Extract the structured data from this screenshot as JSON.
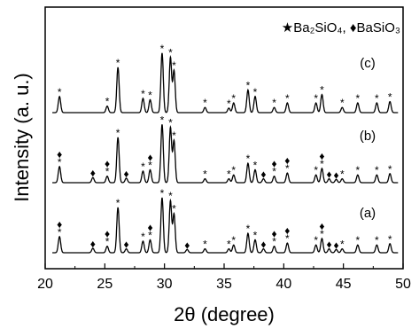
{
  "chart_data": {
    "type": "line",
    "xlabel": "2θ (degree)",
    "ylabel": "Intensity (a. u.)",
    "xlim": [
      20,
      50
    ],
    "xticks": [
      20,
      25,
      30,
      35,
      40,
      45,
      50
    ],
    "legend": {
      "placement": "top-right",
      "entries": [
        {
          "marker": "★",
          "label": "Ba₂SiO₄,"
        },
        {
          "marker": "♦",
          "label": "BaSiO₃"
        }
      ]
    },
    "series": [
      {
        "name": "(c)",
        "peaks": [
          {
            "x": 21.2,
            "h": 0.25
          },
          {
            "x": 25.2,
            "h": 0.1
          },
          {
            "x": 26.1,
            "h": 0.7
          },
          {
            "x": 28.2,
            "h": 0.22
          },
          {
            "x": 28.8,
            "h": 0.2
          },
          {
            "x": 29.8,
            "h": 0.92
          },
          {
            "x": 30.5,
            "h": 0.85
          },
          {
            "x": 30.8,
            "h": 0.65
          },
          {
            "x": 33.4,
            "h": 0.08
          },
          {
            "x": 35.4,
            "h": 0.07
          },
          {
            "x": 35.8,
            "h": 0.15
          },
          {
            "x": 37.0,
            "h": 0.35
          },
          {
            "x": 37.6,
            "h": 0.25
          },
          {
            "x": 39.2,
            "h": 0.08
          },
          {
            "x": 40.3,
            "h": 0.15
          },
          {
            "x": 42.7,
            "h": 0.15
          },
          {
            "x": 43.2,
            "h": 0.28
          },
          {
            "x": 44.9,
            "h": 0.08
          },
          {
            "x": 46.2,
            "h": 0.15
          },
          {
            "x": 47.8,
            "h": 0.15
          },
          {
            "x": 48.9,
            "h": 0.17
          }
        ],
        "markers": [
          {
            "x": 21.2,
            "type": "star"
          },
          {
            "x": 25.2,
            "type": "star"
          },
          {
            "x": 26.1,
            "type": "star"
          },
          {
            "x": 28.2,
            "type": "star"
          },
          {
            "x": 28.8,
            "type": "star"
          },
          {
            "x": 29.8,
            "type": "star"
          },
          {
            "x": 30.5,
            "type": "star"
          },
          {
            "x": 30.8,
            "type": "star"
          },
          {
            "x": 33.4,
            "type": "star"
          },
          {
            "x": 35.4,
            "type": "star"
          },
          {
            "x": 35.8,
            "type": "star"
          },
          {
            "x": 37.0,
            "type": "star"
          },
          {
            "x": 37.6,
            "type": "star"
          },
          {
            "x": 39.2,
            "type": "star"
          },
          {
            "x": 40.3,
            "type": "star"
          },
          {
            "x": 42.7,
            "type": "star"
          },
          {
            "x": 43.2,
            "type": "star"
          },
          {
            "x": 44.9,
            "type": "star"
          },
          {
            "x": 46.2,
            "type": "star"
          },
          {
            "x": 47.8,
            "type": "star"
          },
          {
            "x": 48.9,
            "type": "star"
          }
        ]
      },
      {
        "name": "(b)",
        "peaks": [
          {
            "x": 21.2,
            "h": 0.25
          },
          {
            "x": 24.0,
            "h": 0.08
          },
          {
            "x": 25.2,
            "h": 0.1
          },
          {
            "x": 26.1,
            "h": 0.7
          },
          {
            "x": 26.8,
            "h": 0.07
          },
          {
            "x": 28.2,
            "h": 0.18
          },
          {
            "x": 28.8,
            "h": 0.2
          },
          {
            "x": 29.8,
            "h": 0.9
          },
          {
            "x": 30.5,
            "h": 0.85
          },
          {
            "x": 30.8,
            "h": 0.65
          },
          {
            "x": 33.4,
            "h": 0.06
          },
          {
            "x": 35.4,
            "h": 0.06
          },
          {
            "x": 35.8,
            "h": 0.12
          },
          {
            "x": 37.0,
            "h": 0.3
          },
          {
            "x": 37.6,
            "h": 0.2
          },
          {
            "x": 38.3,
            "h": 0.06
          },
          {
            "x": 39.2,
            "h": 0.1
          },
          {
            "x": 40.3,
            "h": 0.15
          },
          {
            "x": 42.7,
            "h": 0.12
          },
          {
            "x": 43.2,
            "h": 0.22
          },
          {
            "x": 43.8,
            "h": 0.06
          },
          {
            "x": 44.4,
            "h": 0.05
          },
          {
            "x": 44.9,
            "h": 0.06
          },
          {
            "x": 46.2,
            "h": 0.12
          },
          {
            "x": 47.8,
            "h": 0.12
          },
          {
            "x": 48.9,
            "h": 0.14
          }
        ],
        "markers": [
          {
            "x": 21.2,
            "type": "diamond"
          },
          {
            "x": 21.2,
            "type": "star"
          },
          {
            "x": 24.0,
            "type": "diamond"
          },
          {
            "x": 25.2,
            "type": "diamond"
          },
          {
            "x": 25.2,
            "type": "star"
          },
          {
            "x": 26.1,
            "type": "star"
          },
          {
            "x": 26.8,
            "type": "diamond"
          },
          {
            "x": 28.2,
            "type": "star"
          },
          {
            "x": 28.8,
            "type": "diamond"
          },
          {
            "x": 28.8,
            "type": "star"
          },
          {
            "x": 29.8,
            "type": "star"
          },
          {
            "x": 30.5,
            "type": "star"
          },
          {
            "x": 30.8,
            "type": "star"
          },
          {
            "x": 33.4,
            "type": "star"
          },
          {
            "x": 35.4,
            "type": "star"
          },
          {
            "x": 35.8,
            "type": "star"
          },
          {
            "x": 37.0,
            "type": "star"
          },
          {
            "x": 37.6,
            "type": "star"
          },
          {
            "x": 38.3,
            "type": "diamond"
          },
          {
            "x": 39.2,
            "type": "diamond"
          },
          {
            "x": 39.2,
            "type": "star"
          },
          {
            "x": 40.3,
            "type": "diamond"
          },
          {
            "x": 40.3,
            "type": "star"
          },
          {
            "x": 42.7,
            "type": "star"
          },
          {
            "x": 43.2,
            "type": "diamond"
          },
          {
            "x": 43.2,
            "type": "star"
          },
          {
            "x": 43.8,
            "type": "diamond"
          },
          {
            "x": 44.4,
            "type": "diamond"
          },
          {
            "x": 44.9,
            "type": "star"
          },
          {
            "x": 46.2,
            "type": "star"
          },
          {
            "x": 47.8,
            "type": "star"
          },
          {
            "x": 48.9,
            "type": "star"
          }
        ]
      },
      {
        "name": "(a)",
        "peaks": [
          {
            "x": 21.2,
            "h": 0.25
          },
          {
            "x": 24.0,
            "h": 0.07
          },
          {
            "x": 25.2,
            "h": 0.1
          },
          {
            "x": 26.1,
            "h": 0.7
          },
          {
            "x": 26.8,
            "h": 0.06
          },
          {
            "x": 28.2,
            "h": 0.18
          },
          {
            "x": 28.8,
            "h": 0.2
          },
          {
            "x": 29.8,
            "h": 0.85
          },
          {
            "x": 30.5,
            "h": 0.8
          },
          {
            "x": 30.8,
            "h": 0.6
          },
          {
            "x": 31.9,
            "h": 0.05
          },
          {
            "x": 33.4,
            "h": 0.06
          },
          {
            "x": 35.4,
            "h": 0.06
          },
          {
            "x": 35.8,
            "h": 0.12
          },
          {
            "x": 37.0,
            "h": 0.3
          },
          {
            "x": 37.6,
            "h": 0.2
          },
          {
            "x": 38.3,
            "h": 0.06
          },
          {
            "x": 39.2,
            "h": 0.1
          },
          {
            "x": 40.3,
            "h": 0.15
          },
          {
            "x": 42.7,
            "h": 0.12
          },
          {
            "x": 43.2,
            "h": 0.22
          },
          {
            "x": 43.8,
            "h": 0.06
          },
          {
            "x": 44.4,
            "h": 0.05
          },
          {
            "x": 44.9,
            "h": 0.06
          },
          {
            "x": 46.2,
            "h": 0.12
          },
          {
            "x": 47.8,
            "h": 0.12
          },
          {
            "x": 48.9,
            "h": 0.14
          }
        ],
        "markers": [
          {
            "x": 21.2,
            "type": "diamond"
          },
          {
            "x": 21.2,
            "type": "star"
          },
          {
            "x": 24.0,
            "type": "diamond"
          },
          {
            "x": 25.2,
            "type": "diamond"
          },
          {
            "x": 25.2,
            "type": "star"
          },
          {
            "x": 26.1,
            "type": "star"
          },
          {
            "x": 26.8,
            "type": "diamond"
          },
          {
            "x": 28.2,
            "type": "star"
          },
          {
            "x": 28.8,
            "type": "diamond"
          },
          {
            "x": 28.8,
            "type": "star"
          },
          {
            "x": 29.8,
            "type": "star"
          },
          {
            "x": 30.5,
            "type": "star"
          },
          {
            "x": 30.8,
            "type": "star"
          },
          {
            "x": 31.9,
            "type": "diamond"
          },
          {
            "x": 33.4,
            "type": "star"
          },
          {
            "x": 35.4,
            "type": "star"
          },
          {
            "x": 35.8,
            "type": "star"
          },
          {
            "x": 37.0,
            "type": "star"
          },
          {
            "x": 37.6,
            "type": "star"
          },
          {
            "x": 38.3,
            "type": "diamond"
          },
          {
            "x": 39.2,
            "type": "diamond"
          },
          {
            "x": 39.2,
            "type": "star"
          },
          {
            "x": 40.3,
            "type": "diamond"
          },
          {
            "x": 40.3,
            "type": "star"
          },
          {
            "x": 42.7,
            "type": "star"
          },
          {
            "x": 43.2,
            "type": "diamond"
          },
          {
            "x": 43.2,
            "type": "star"
          },
          {
            "x": 43.8,
            "type": "diamond"
          },
          {
            "x": 44.4,
            "type": "diamond"
          },
          {
            "x": 44.9,
            "type": "star"
          },
          {
            "x": 46.2,
            "type": "star"
          },
          {
            "x": 47.8,
            "type": "star"
          },
          {
            "x": 48.9,
            "type": "star"
          }
        ]
      }
    ],
    "colors": {
      "line": "#000000",
      "background": "#ffffff"
    }
  }
}
